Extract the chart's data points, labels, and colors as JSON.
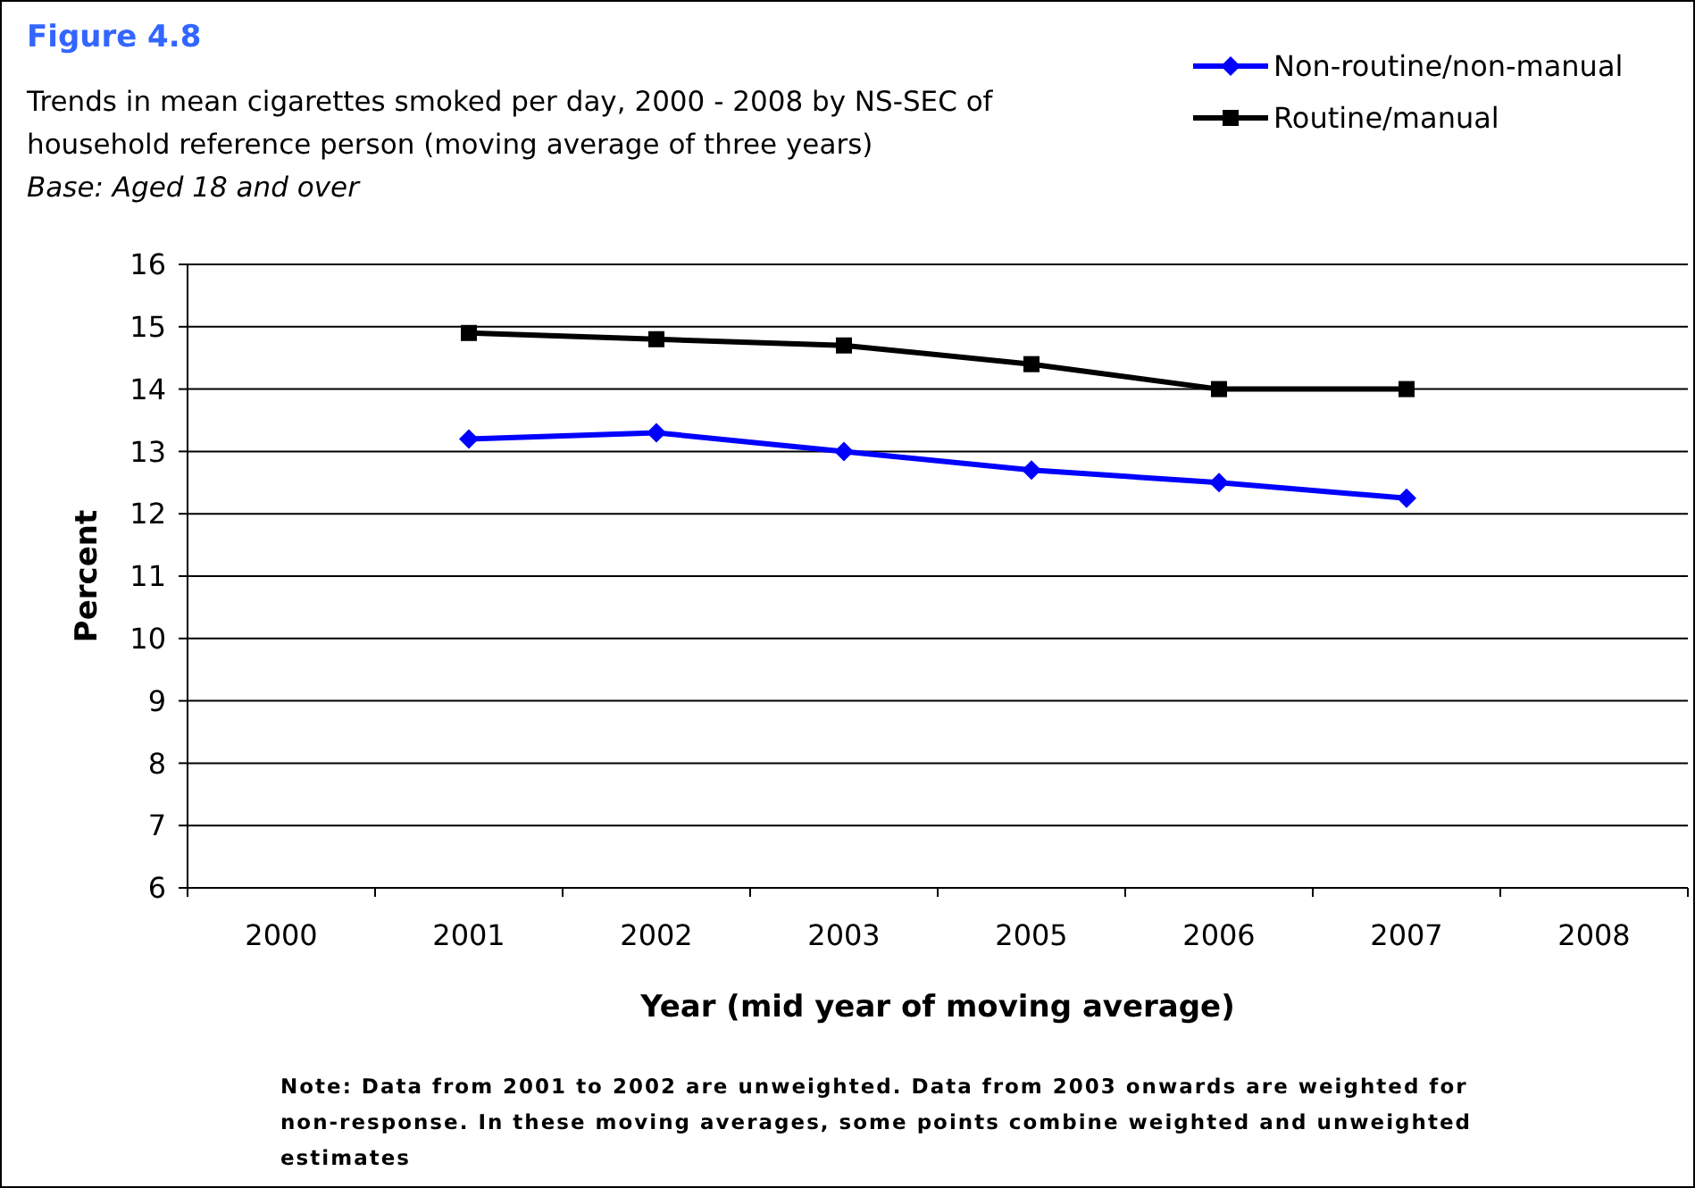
{
  "chart_data": {
    "type": "line",
    "title": "Figure 4.8",
    "subtitle": "Trends in mean cigarettes smoked per day, 2000 - 2008 by NS-SEC of household reference person (moving average of three years)",
    "xlabel": "Year (mid year of moving average)",
    "ylabel": "Percent",
    "annotations": [
      "Base: Aged 18 and over",
      "Note: Data from 2001 to 2002 are unweighted. Data from 2003 onwards are weighted for non-response. In these moving averages, some points combine weighted and unweighted estimates"
    ],
    "categories": [
      "2000",
      "2001",
      "2002",
      "2003",
      "2005",
      "2006",
      "2007",
      "2008"
    ],
    "series": [
      {
        "name": "Non-routine/non-manual",
        "color": "#0000ff",
        "marker": "diamond",
        "values": [
          null,
          13.2,
          13.3,
          13.0,
          12.7,
          12.5,
          12.25,
          null
        ]
      },
      {
        "name": "Routine/manual",
        "color": "#000000",
        "marker": "square",
        "values": [
          null,
          14.9,
          14.8,
          14.7,
          14.4,
          14.0,
          14.0,
          null
        ]
      }
    ],
    "ylim": [
      6,
      16
    ],
    "yticks": [
      6,
      7,
      8,
      9,
      10,
      11,
      12,
      13,
      14,
      15,
      16
    ],
    "grid": "y",
    "legend": "top right",
    "line_style": "solid"
  }
}
